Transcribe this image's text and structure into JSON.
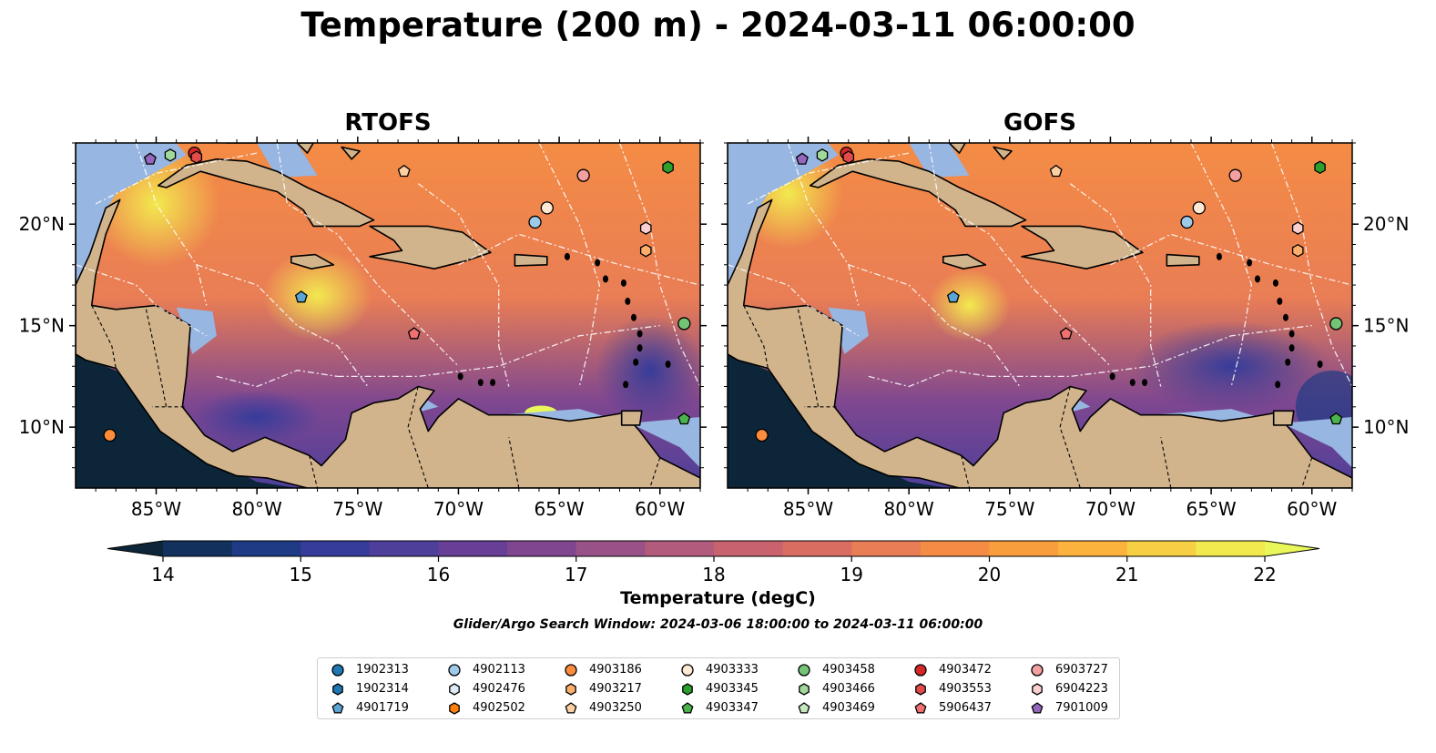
{
  "title": "Temperature (200 m) - 2024-03-11 06:00:00",
  "panels": [
    {
      "title": "RTOFS",
      "x_ticks": [
        "85°W",
        "80°W",
        "75°W",
        "70°W",
        "65°W",
        "60°W"
      ],
      "y_ticks": [
        "20°N",
        "15°N",
        "10°N"
      ],
      "y_ticks_side": "left"
    },
    {
      "title": "GOFS",
      "x_ticks": [
        "85°W",
        "80°W",
        "75°W",
        "70°W",
        "65°W",
        "60°W"
      ],
      "y_ticks": [
        "20°N",
        "15°N",
        "10°N"
      ],
      "y_ticks_side": "right"
    }
  ],
  "map_extent": {
    "lon": [
      -89,
      -58
    ],
    "lat": [
      7,
      24
    ]
  },
  "colorbar": {
    "label": "Temperature (degC)",
    "ticks": [
      "14",
      "15",
      "16",
      "17",
      "18",
      "19",
      "20",
      "21",
      "22"
    ],
    "range": [
      14,
      22
    ],
    "extend": "both",
    "colors": [
      "#0d2538",
      "#12315c",
      "#1f3b85",
      "#363c9a",
      "#4e3f9a",
      "#673f96",
      "#7f4790",
      "#995288",
      "#b35b7c",
      "#c8626e",
      "#d96d62",
      "#e97d55",
      "#f48c45",
      "#f99e3c",
      "#fbb33e",
      "#f7cf44",
      "#f2e94f",
      "#e9f75a"
    ],
    "under_color": "#0d2538",
    "over_color": "#e9f75a"
  },
  "search_window": "Glider/Argo Search Window: 2024-03-06 18:00:00 to 2024-03-11 06:00:00",
  "map_colors": {
    "land": "#d2b48c",
    "shelf": "#97b6e1",
    "coastline": "#000000",
    "eez": "#ffffff"
  },
  "floats": [
    {
      "id": "1902313",
      "marker": "circle",
      "color": "#1f77b4"
    },
    {
      "id": "1902314",
      "marker": "hexagon",
      "color": "#1f77b4"
    },
    {
      "id": "4901719",
      "marker": "pentagon",
      "color": "#5aa4d6",
      "lon": -77.8,
      "lat": 16.4
    },
    {
      "id": "4902113",
      "marker": "circle",
      "color": "#9ecae9",
      "lon": -66.2,
      "lat": 20.1
    },
    {
      "id": "4902476",
      "marker": "hexagon",
      "color": "#deebf7"
    },
    {
      "id": "4902502",
      "marker": "hexagon",
      "color": "#ff7f0e"
    },
    {
      "id": "4903186",
      "marker": "circle",
      "color": "#fd8d3c",
      "lon": -87.3,
      "lat": 9.6
    },
    {
      "id": "4903217",
      "marker": "hexagon",
      "color": "#fdae6b",
      "lon": -60.7,
      "lat": 18.7
    },
    {
      "id": "4903250",
      "marker": "pentagon",
      "color": "#fdd0a2",
      "lon": -72.7,
      "lat": 22.6
    },
    {
      "id": "4903333",
      "marker": "circle",
      "color": "#fde9d4",
      "lon": -65.6,
      "lat": 20.8
    },
    {
      "id": "4903345",
      "marker": "hexagon",
      "color": "#2ca02c",
      "lon": -59.6,
      "lat": 22.8
    },
    {
      "id": "4903347",
      "marker": "pentagon",
      "color": "#4bb34b",
      "lon": -58.8,
      "lat": 10.4
    },
    {
      "id": "4903458",
      "marker": "circle",
      "color": "#74c476",
      "lon": -58.8,
      "lat": 15.1
    },
    {
      "id": "4903466",
      "marker": "hexagon",
      "color": "#a1d99b",
      "lon": -84.3,
      "lat": 23.4
    },
    {
      "id": "4903469",
      "marker": "pentagon",
      "color": "#c7e9c0"
    },
    {
      "id": "4903472",
      "marker": "circle",
      "color": "#d62728",
      "lon": -83.1,
      "lat": 23.5
    },
    {
      "id": "4903553",
      "marker": "hexagon",
      "color": "#e34a4a",
      "lon": -83.0,
      "lat": 23.3
    },
    {
      "id": "5906437",
      "marker": "pentagon",
      "color": "#f07070",
      "lon": -72.2,
      "lat": 14.6
    },
    {
      "id": "6903727",
      "marker": "circle",
      "color": "#f4a0a0",
      "lon": -63.8,
      "lat": 22.4
    },
    {
      "id": "6904223",
      "marker": "hexagon",
      "color": "#fbcfcf",
      "lon": -60.7,
      "lat": 19.8
    },
    {
      "id": "7901009",
      "marker": "pentagon",
      "color": "#9467bd",
      "lon": -85.3,
      "lat": 23.2
    }
  ]
}
